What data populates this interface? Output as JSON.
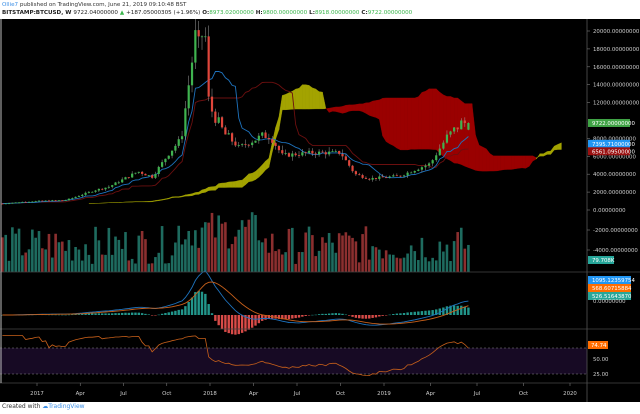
{
  "header": {
    "user": "Ollie7",
    "published_text": " published on TradingView.com, June 21, 2019 09:10:48 BST",
    "symbol": "BITSTAMP:BTCUSD, W",
    "last": "9722.04000000",
    "change": "+187.05000305 (+1.96%)",
    "o_label": "O:",
    "o_value": "8973.02000000",
    "h_label": "H:",
    "h_value": "9800.00000000",
    "l_label": "L:",
    "l_value": "8918.00000000",
    "c_label": "C:",
    "c_value": "9722.00000000"
  },
  "footer": {
    "created_with": "Created with ",
    "brand": "TradingView"
  },
  "colors": {
    "up": "#3fb34f",
    "down": "#e0463b",
    "cloud_bear": "#9a0000",
    "cloud_bull": "#a3a300",
    "tenkan": "#1e73be",
    "kijun": "#6b0f0f",
    "vol_up": "#1e6b5f",
    "vol_down": "#8b2f2f",
    "macd": "#1e73be",
    "signal": "#c8601a",
    "rsi": "#c8601a",
    "rsi_band": "#170a24"
  },
  "axis": {
    "price_labels": [
      "20000.00000000",
      "18000.00000000",
      "16000.00000000",
      "14000.00000000",
      "12000.00000000",
      "8000.00000000",
      "6000.00000000",
      "4000.00000000",
      "2000.00000000",
      "0.00000000",
      "-2000.00000000",
      "-4000.00000000"
    ],
    "price_tags": [
      {
        "text": "9722.00000000",
        "color": "#3fa345"
      },
      {
        "text": "7395.71000000",
        "color": "#2196f3"
      },
      {
        "text": "6561.09500000",
        "color": "#9a1010"
      },
      {
        "text": "79.708K",
        "color": "#26a69a"
      }
    ],
    "macd_tags": [
      {
        "text": "1095.12359754",
        "color": "#2196f3"
      },
      {
        "text": "568.60715884",
        "color": "#ff6d00"
      },
      {
        "text": "526.51643870",
        "color": "#26a69a"
      }
    ],
    "macd_zero": "0.00000000",
    "rsi_tag": {
      "text": "74.74",
      "color": "#ff6d00"
    },
    "rsi_labels": [
      "50.00",
      "25.00"
    ],
    "time_labels": [
      "2017",
      "Apr",
      "Jul",
      "Oct",
      "2018",
      "Apr",
      "Jul",
      "Oct",
      "2019",
      "Apr",
      "Jul",
      "Oct",
      "2020"
    ]
  },
  "chart_data": {
    "type": "candlestick",
    "title": "BITSTAMP:BTCUSD, W",
    "timeframe": "Weekly",
    "x_range": [
      "2016-10",
      "2020-01"
    ],
    "ylim": [
      -4000,
      21000
    ],
    "last_candle": {
      "open": 8973.02,
      "high": 9800.0,
      "low": 8918.0,
      "close": 9722.0,
      "change": 187.05000305,
      "change_pct": 1.96
    },
    "approx_weekly_close": [
      {
        "date": "2016-10",
        "close": 640
      },
      {
        "date": "2016-12",
        "close": 900
      },
      {
        "date": "2017-01",
        "close": 1000
      },
      {
        "date": "2017-03",
        "close": 1100
      },
      {
        "date": "2017-05",
        "close": 2200
      },
      {
        "date": "2017-06",
        "close": 2600
      },
      {
        "date": "2017-08",
        "close": 4300
      },
      {
        "date": "2017-09",
        "close": 3700
      },
      {
        "date": "2017-10",
        "close": 6000
      },
      {
        "date": "2017-11",
        "close": 8000
      },
      {
        "date": "2017-12",
        "close": 19500
      },
      {
        "date": "2018-01",
        "close": 11500
      },
      {
        "date": "2018-02",
        "close": 8500
      },
      {
        "date": "2018-03",
        "close": 7000
      },
      {
        "date": "2018-05",
        "close": 8500
      },
      {
        "date": "2018-06",
        "close": 6100
      },
      {
        "date": "2018-08",
        "close": 6400
      },
      {
        "date": "2018-10",
        "close": 6400
      },
      {
        "date": "2018-11",
        "close": 4000
      },
      {
        "date": "2018-12",
        "close": 3500
      },
      {
        "date": "2019-02",
        "close": 3800
      },
      {
        "date": "2019-04",
        "close": 5200
      },
      {
        "date": "2019-05",
        "close": 8000
      },
      {
        "date": "2019-06",
        "close": 9722
      }
    ],
    "indicators": {
      "ichimoku": {
        "tenkan_last": 7395.71,
        "kijun_last": 6561.095
      },
      "volume": {
        "last": "79.708K"
      },
      "macd": {
        "macd": 1095.12359754,
        "signal": 568.60715884,
        "histogram": 526.5164387
      },
      "rsi": {
        "value": 74.74,
        "bands": [
          75,
          25
        ],
        "labels": [
          "50.00",
          "25.00"
        ]
      }
    }
  }
}
